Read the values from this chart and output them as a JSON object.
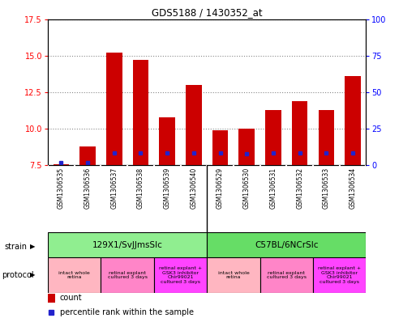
{
  "title": "GDS5188 / 1430352_at",
  "samples": [
    "GSM1306535",
    "GSM1306536",
    "GSM1306537",
    "GSM1306538",
    "GSM1306539",
    "GSM1306540",
    "GSM1306529",
    "GSM1306530",
    "GSM1306531",
    "GSM1306532",
    "GSM1306533",
    "GSM1306534"
  ],
  "count_values": [
    7.6,
    8.8,
    15.2,
    14.7,
    10.8,
    13.0,
    9.9,
    10.0,
    11.3,
    11.9,
    11.3,
    13.6
  ],
  "percentile_values": [
    2.0,
    2.0,
    8.5,
    8.5,
    8.5,
    8.5,
    8.5,
    8.0,
    8.5,
    8.5,
    8.5,
    8.5
  ],
  "y_min": 7.5,
  "y_max": 17.5,
  "y_ticks": [
    7.5,
    10.0,
    12.5,
    15.0,
    17.5
  ],
  "right_y_ticks": [
    0,
    25,
    50,
    75,
    100
  ],
  "strain_groups": [
    {
      "label": "129X1/SvJJmsSlc",
      "start": 0,
      "end": 6,
      "color": "#90EE90"
    },
    {
      "label": "C57BL/6NCrSlc",
      "start": 6,
      "end": 12,
      "color": "#66DD66"
    }
  ],
  "protocol_groups": [
    {
      "label": "intact whole\nretina",
      "start": 0,
      "end": 2,
      "color": "#FFB6C1"
    },
    {
      "label": "retinal explant\ncultured 3 days",
      "start": 2,
      "end": 4,
      "color": "#FF85C8"
    },
    {
      "label": "retinal explant +\nGSK3 inhibitor\nChir99021\ncultured 3 days",
      "start": 4,
      "end": 6,
      "color": "#FF44FF"
    },
    {
      "label": "intact whole\nretina",
      "start": 6,
      "end": 8,
      "color": "#FFB6C1"
    },
    {
      "label": "retinal explant\ncultured 3 days",
      "start": 8,
      "end": 10,
      "color": "#FF85C8"
    },
    {
      "label": "retinal explant +\nGSK3 inhibitor\nChir99021\ncultured 3 days",
      "start": 10,
      "end": 12,
      "color": "#FF44FF"
    }
  ],
  "bar_color": "#CC0000",
  "percentile_color": "#2222CC",
  "bg_color": "#FFFFFF",
  "grid_color": "#888888",
  "label_bg": "#D3D3D3"
}
